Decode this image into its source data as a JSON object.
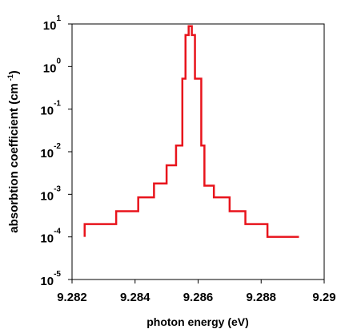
{
  "chart_data": {
    "type": "step",
    "drawstyle": "steps-post",
    "log_y": true,
    "xlabel": "photon energy (eV)",
    "ylabel": {
      "text": "absorbtion coefficient (cm",
      "superscript": "-1",
      "suffix": ")"
    },
    "xlim": [
      9.282,
      9.29
    ],
    "xticks": [
      9.282,
      9.284,
      9.286,
      9.288,
      9.29
    ],
    "ylim": [
      1e-05,
      10
    ],
    "yticks": [
      {
        "value": 1e-05,
        "label": "10",
        "exponent": "-5"
      },
      {
        "value": 0.0001,
        "label": "10",
        "exponent": "-4"
      },
      {
        "value": 0.001,
        "label": "10",
        "exponent": "-3"
      },
      {
        "value": 0.01,
        "label": "10",
        "exponent": "-2"
      },
      {
        "value": 0.1,
        "label": "10",
        "exponent": "-1"
      },
      {
        "value": 1,
        "label": "10",
        "exponent": "0"
      },
      {
        "value": 10,
        "label": "10",
        "exponent": "1"
      }
    ],
    "color": "#e8141c",
    "x": [
      9.2824,
      9.2824,
      9.2834,
      9.2841,
      9.2846,
      9.285,
      9.2853,
      9.2855,
      9.2856,
      9.2857,
      9.2858,
      9.2859,
      9.2861,
      9.2862,
      9.2865,
      9.287,
      9.2875,
      9.2882,
      9.2892
    ],
    "values": [
      0.0001,
      0.0002,
      0.0004,
      0.00085,
      0.0018,
      0.0048,
      0.014,
      0.52,
      5.5,
      8.9,
      5.5,
      0.52,
      0.014,
      0.0016,
      0.00085,
      0.0004,
      0.0002,
      0.0001,
      0.0001
    ]
  }
}
